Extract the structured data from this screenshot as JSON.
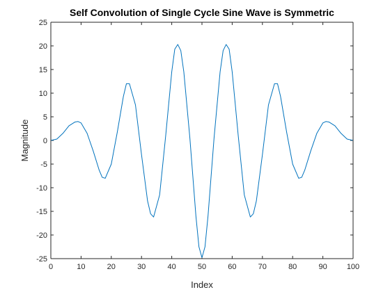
{
  "chart_data": {
    "type": "line",
    "title": "Self Convolution of Single Cycle Sine Wave is Symmetric",
    "xlabel": "Index",
    "ylabel": "Magnitude",
    "xlim": [
      0,
      100
    ],
    "ylim": [
      -25,
      25
    ],
    "xticks": [
      0,
      10,
      20,
      30,
      40,
      50,
      60,
      70,
      80,
      90,
      100
    ],
    "yticks": [
      -25,
      -20,
      -15,
      -10,
      -5,
      0,
      5,
      10,
      15,
      20,
      25
    ],
    "grid": false,
    "line_color": "#0072BD",
    "series": [
      {
        "x": [
          0,
          2,
          4,
          6,
          8,
          9,
          10,
          12,
          14,
          16,
          17,
          18,
          20,
          22,
          24,
          25,
          26,
          28,
          30,
          32,
          33,
          34,
          36,
          38,
          40,
          41,
          42,
          43,
          44,
          46,
          48,
          49,
          50,
          51,
          52,
          54,
          56,
          57,
          58,
          59,
          60,
          62,
          64,
          66,
          67,
          68,
          70,
          72,
          74,
          75,
          76,
          78,
          80,
          82,
          83,
          84,
          86,
          88,
          90,
          91,
          92,
          94,
          96,
          98,
          100
        ],
        "values": [
          0,
          0.3,
          1.5,
          3.1,
          3.9,
          4.0,
          3.7,
          1.5,
          -2.2,
          -6.3,
          -7.8,
          -8.0,
          -5.0,
          1.8,
          9.3,
          12.0,
          12.0,
          7.5,
          -3.0,
          -12.8,
          -15.5,
          -16.2,
          -11.5,
          1.0,
          14.5,
          19.3,
          20.3,
          19.0,
          14.5,
          0.5,
          -16.0,
          -22.5,
          -24.8,
          -22.5,
          -16.0,
          0.5,
          14.5,
          19.0,
          20.3,
          19.3,
          14.5,
          1.0,
          -11.5,
          -16.2,
          -15.5,
          -12.8,
          -3.0,
          7.5,
          12.0,
          12.0,
          9.3,
          1.8,
          -5.0,
          -8.0,
          -7.8,
          -6.3,
          -2.2,
          1.5,
          3.7,
          4.0,
          3.9,
          3.1,
          1.5,
          0.3,
          0
        ]
      }
    ]
  }
}
